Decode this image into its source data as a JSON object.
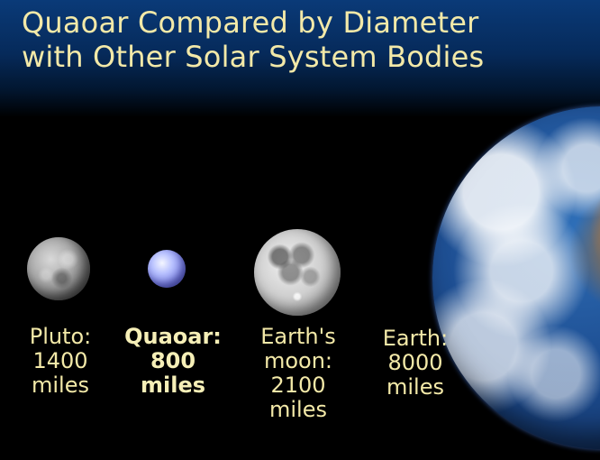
{
  "title_lines": [
    "Quaoar Compared by Diameter",
    "with Other Solar System Bodies"
  ],
  "bodies": [
    {
      "name": "Pluto",
      "label_lines": [
        "Pluto:",
        "1400",
        "miles"
      ]
    },
    {
      "name": "Quaoar",
      "label_lines": [
        "Quaoar:",
        "800",
        "miles"
      ]
    },
    {
      "name": "Earth's moon",
      "label_lines": [
        "Earth's",
        "moon:",
        "2100",
        "miles"
      ]
    },
    {
      "name": "Earth",
      "label_lines": [
        "Earth:",
        "8000",
        "miles"
      ]
    }
  ],
  "colors": {
    "text": "#f3e9a8",
    "background_top": "#0a3a78",
    "background_bottom": "#000000"
  }
}
